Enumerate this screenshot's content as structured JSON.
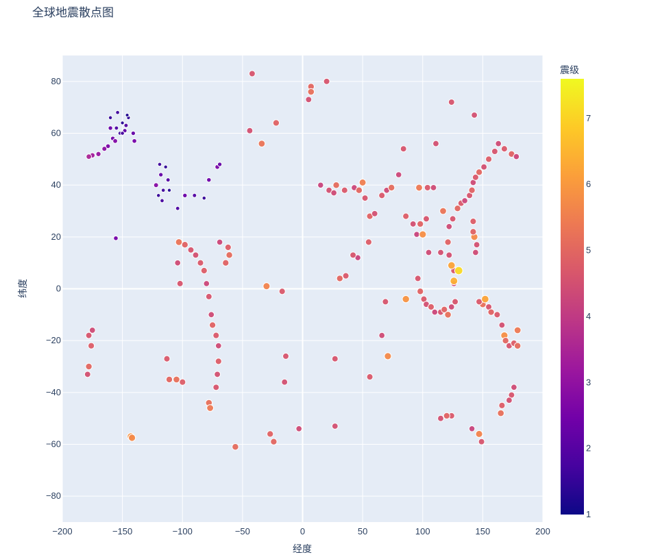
{
  "chart_data": {
    "type": "scatter",
    "title": "全球地震散点图",
    "xlabel": "经度",
    "ylabel": "纬度",
    "xlim": [
      -200,
      200
    ],
    "ylim": [
      -90,
      90
    ],
    "x_ticks": [
      -200,
      -150,
      -100,
      -50,
      0,
      50,
      100,
      150,
      200
    ],
    "y_ticks": [
      -80,
      -60,
      -40,
      -20,
      0,
      20,
      40,
      60,
      80
    ],
    "grid": true,
    "colorbar": {
      "title": "震级",
      "range": [
        1,
        7.6
      ],
      "ticks": [
        1,
        2,
        3,
        4,
        5,
        6,
        7
      ],
      "colorscale": "plasma"
    },
    "points": [
      {
        "x": -160,
        "y": 66,
        "mag": 1.5
      },
      {
        "x": -155,
        "y": 62,
        "mag": 1.8
      },
      {
        "x": -150,
        "y": 64,
        "mag": 1.3
      },
      {
        "x": -148,
        "y": 61,
        "mag": 2.1
      },
      {
        "x": -152,
        "y": 60,
        "mag": 1.6
      },
      {
        "x": -147,
        "y": 63,
        "mag": 1.9
      },
      {
        "x": -145,
        "y": 66,
        "mag": 1.4
      },
      {
        "x": -158,
        "y": 58,
        "mag": 2.4
      },
      {
        "x": -162,
        "y": 55,
        "mag": 2.6
      },
      {
        "x": -165,
        "y": 54,
        "mag": 2.9
      },
      {
        "x": -170,
        "y": 52,
        "mag": 3.1
      },
      {
        "x": -175,
        "y": 51.5,
        "mag": 3.3
      },
      {
        "x": -178,
        "y": 51,
        "mag": 3.5
      },
      {
        "x": -156,
        "y": 57,
        "mag": 2.7
      },
      {
        "x": -150,
        "y": 60,
        "mag": 1.7
      },
      {
        "x": -141,
        "y": 60,
        "mag": 2.2
      },
      {
        "x": -146,
        "y": 67,
        "mag": 1.2
      },
      {
        "x": -154,
        "y": 68,
        "mag": 1.6
      },
      {
        "x": -140,
        "y": 57,
        "mag": 2.5
      },
      {
        "x": -160,
        "y": 62,
        "mag": 2.3
      },
      {
        "x": -118,
        "y": 44,
        "mag": 2.2
      },
      {
        "x": -116,
        "y": 38,
        "mag": 1.6
      },
      {
        "x": -120,
        "y": 36,
        "mag": 1.5
      },
      {
        "x": -117,
        "y": 34,
        "mag": 1.7
      },
      {
        "x": -122,
        "y": 40,
        "mag": 2.8
      },
      {
        "x": -112,
        "y": 42,
        "mag": 1.9
      },
      {
        "x": -111,
        "y": 38,
        "mag": 1.3
      },
      {
        "x": -114,
        "y": 47,
        "mag": 1.4
      },
      {
        "x": -119,
        "y": 48,
        "mag": 1.6
      },
      {
        "x": -104,
        "y": 31,
        "mag": 1.8
      },
      {
        "x": -98,
        "y": 36,
        "mag": 2.3
      },
      {
        "x": -90,
        "y": 36,
        "mag": 1.9
      },
      {
        "x": -82,
        "y": 35,
        "mag": 1.5
      },
      {
        "x": -78,
        "y": 42,
        "mag": 2.4
      },
      {
        "x": -71,
        "y": 47,
        "mag": 2.6
      },
      {
        "x": -69,
        "y": 48,
        "mag": 2.2
      },
      {
        "x": -155.5,
        "y": 19.5,
        "mag": 2.5
      },
      {
        "x": -178,
        "y": -18,
        "mag": 4.6
      },
      {
        "x": -176,
        "y": -22,
        "mag": 4.8
      },
      {
        "x": -175,
        "y": -16,
        "mag": 4.4
      },
      {
        "x": -178,
        "y": -30,
        "mag": 5.0
      },
      {
        "x": -179,
        "y": -33,
        "mag": 4.5
      },
      {
        "x": -103,
        "y": 18,
        "mag": 5.3
      },
      {
        "x": -98,
        "y": 17,
        "mag": 4.9
      },
      {
        "x": -93,
        "y": 15,
        "mag": 4.6
      },
      {
        "x": -89,
        "y": 13,
        "mag": 4.5
      },
      {
        "x": -85,
        "y": 10,
        "mag": 4.7
      },
      {
        "x": -82,
        "y": 7,
        "mag": 4.8
      },
      {
        "x": -80,
        "y": 2,
        "mag": 4.3
      },
      {
        "x": -78,
        "y": -3,
        "mag": 4.6
      },
      {
        "x": -76,
        "y": -10,
        "mag": 4.4
      },
      {
        "x": -75,
        "y": -14,
        "mag": 4.9
      },
      {
        "x": -72,
        "y": -18,
        "mag": 4.7
      },
      {
        "x": -70,
        "y": -22,
        "mag": 4.4
      },
      {
        "x": -70,
        "y": -28,
        "mag": 4.8
      },
      {
        "x": -71,
        "y": -33,
        "mag": 4.5
      },
      {
        "x": -72,
        "y": -38,
        "mag": 4.6
      },
      {
        "x": -69,
        "y": 18,
        "mag": 4.3
      },
      {
        "x": -62,
        "y": 16,
        "mag": 4.8
      },
      {
        "x": -61,
        "y": 13,
        "mag": 5.1
      },
      {
        "x": -64,
        "y": 10,
        "mag": 4.9
      },
      {
        "x": -78,
        "y": -44,
        "mag": 5.2
      },
      {
        "x": -77,
        "y": -46,
        "mag": 5.4
      },
      {
        "x": -113,
        "y": -27,
        "mag": 4.7
      },
      {
        "x": -111,
        "y": -35,
        "mag": 5.0
      },
      {
        "x": -105,
        "y": -35,
        "mag": 5.2
      },
      {
        "x": -100,
        "y": -36,
        "mag": 4.8
      },
      {
        "x": -102,
        "y": 2,
        "mag": 4.6
      },
      {
        "x": -104,
        "y": 10,
        "mag": 4.4
      },
      {
        "x": -56,
        "y": -61,
        "mag": 5.1
      },
      {
        "x": -27,
        "y": -56,
        "mag": 4.9
      },
      {
        "x": -24,
        "y": -59,
        "mag": 5.0
      },
      {
        "x": -30,
        "y": 1,
        "mag": 5.6
      },
      {
        "x": -17,
        "y": -1,
        "mag": 4.7
      },
      {
        "x": -14,
        "y": -26,
        "mag": 4.6
      },
      {
        "x": -15,
        "y": -36,
        "mag": 4.5
      },
      {
        "x": -3,
        "y": -54,
        "mag": 4.4
      },
      {
        "x": -34,
        "y": 56,
        "mag": 5.3
      },
      {
        "x": -22,
        "y": 64,
        "mag": 4.9
      },
      {
        "x": -44,
        "y": 61,
        "mag": 4.5
      },
      {
        "x": -42,
        "y": 83,
        "mag": 4.6
      },
      {
        "x": -143,
        "y": -57,
        "mag": 5.9
      },
      {
        "x": -142,
        "y": -57.5,
        "mag": 5.7
      },
      {
        "x": 7,
        "y": 78,
        "mag": 5.0
      },
      {
        "x": 20,
        "y": 80,
        "mag": 4.6
      },
      {
        "x": 5,
        "y": 73,
        "mag": 4.5
      },
      {
        "x": 7,
        "y": 76,
        "mag": 5.2
      },
      {
        "x": 15,
        "y": 40,
        "mag": 4.2
      },
      {
        "x": 22,
        "y": 38,
        "mag": 4.5
      },
      {
        "x": 26,
        "y": 37,
        "mag": 4.4
      },
      {
        "x": 28,
        "y": 40,
        "mag": 5.1
      },
      {
        "x": 35,
        "y": 38,
        "mag": 4.7
      },
      {
        "x": 43,
        "y": 39,
        "mag": 4.3
      },
      {
        "x": 47,
        "y": 38,
        "mag": 5.0
      },
      {
        "x": 50,
        "y": 41,
        "mag": 5.5
      },
      {
        "x": 52,
        "y": 35,
        "mag": 4.6
      },
      {
        "x": 56,
        "y": 28,
        "mag": 4.9
      },
      {
        "x": 60,
        "y": 29,
        "mag": 4.5
      },
      {
        "x": 66,
        "y": 36,
        "mag": 4.7
      },
      {
        "x": 70,
        "y": 38,
        "mag": 4.4
      },
      {
        "x": 74,
        "y": 39,
        "mag": 5.1
      },
      {
        "x": 80,
        "y": 44,
        "mag": 4.3
      },
      {
        "x": 84,
        "y": 54,
        "mag": 4.6
      },
      {
        "x": 86,
        "y": 28,
        "mag": 4.8
      },
      {
        "x": 92,
        "y": 25,
        "mag": 4.5
      },
      {
        "x": 95,
        "y": 21,
        "mag": 4.2
      },
      {
        "x": 98,
        "y": 25,
        "mag": 4.9
      },
      {
        "x": 100,
        "y": 21,
        "mag": 5.8
      },
      {
        "x": 103,
        "y": 27,
        "mag": 4.6
      },
      {
        "x": 97,
        "y": 39,
        "mag": 5.4
      },
      {
        "x": 104,
        "y": 39,
        "mag": 4.7
      },
      {
        "x": 111,
        "y": 56,
        "mag": 4.5
      },
      {
        "x": 105,
        "y": 14,
        "mag": 4.4
      },
      {
        "x": 96,
        "y": 4,
        "mag": 4.6
      },
      {
        "x": 98,
        "y": -1,
        "mag": 4.9
      },
      {
        "x": 101,
        "y": -4,
        "mag": 4.7
      },
      {
        "x": 103,
        "y": -6,
        "mag": 4.5
      },
      {
        "x": 107,
        "y": -7,
        "mag": 4.8
      },
      {
        "x": 110,
        "y": -9,
        "mag": 4.3
      },
      {
        "x": 115,
        "y": -9,
        "mag": 4.6
      },
      {
        "x": 118,
        "y": -8,
        "mag": 4.9
      },
      {
        "x": 121,
        "y": -10,
        "mag": 5.2
      },
      {
        "x": 124,
        "y": -7,
        "mag": 4.4
      },
      {
        "x": 127,
        "y": -5,
        "mag": 4.6
      },
      {
        "x": 126,
        "y": 2,
        "mag": 4.3
      },
      {
        "x": 126,
        "y": 7,
        "mag": 4.7
      },
      {
        "x": 122,
        "y": 13,
        "mag": 4.5
      },
      {
        "x": 121,
        "y": 18,
        "mag": 4.9
      },
      {
        "x": 122,
        "y": 24,
        "mag": 4.4
      },
      {
        "x": 125,
        "y": 27,
        "mag": 4.6
      },
      {
        "x": 129,
        "y": 31,
        "mag": 5.0
      },
      {
        "x": 132,
        "y": 33,
        "mag": 4.7
      },
      {
        "x": 135,
        "y": 34,
        "mag": 4.3
      },
      {
        "x": 139,
        "y": 36,
        "mag": 4.6
      },
      {
        "x": 141,
        "y": 38,
        "mag": 4.9
      },
      {
        "x": 142,
        "y": 41,
        "mag": 4.4
      },
      {
        "x": 144,
        "y": 43,
        "mag": 4.7
      },
      {
        "x": 147,
        "y": 45,
        "mag": 5.0
      },
      {
        "x": 151,
        "y": 47,
        "mag": 4.5
      },
      {
        "x": 155,
        "y": 50,
        "mag": 4.8
      },
      {
        "x": 160,
        "y": 53,
        "mag": 4.6
      },
      {
        "x": 163,
        "y": 56,
        "mag": 4.4
      },
      {
        "x": 168,
        "y": 54,
        "mag": 4.7
      },
      {
        "x": 174,
        "y": 52,
        "mag": 4.9
      },
      {
        "x": 178,
        "y": 51,
        "mag": 4.3
      },
      {
        "x": 143,
        "y": 67,
        "mag": 4.5
      },
      {
        "x": 124,
        "y": 72,
        "mag": 4.6
      },
      {
        "x": 142,
        "y": 26,
        "mag": 4.8
      },
      {
        "x": 143,
        "y": 20,
        "mag": 5.7
      },
      {
        "x": 145,
        "y": 17,
        "mag": 4.5
      },
      {
        "x": 144,
        "y": 14,
        "mag": 4.4
      },
      {
        "x": 142,
        "y": 22,
        "mag": 4.9
      },
      {
        "x": 150,
        "y": -6,
        "mag": 5.2
      },
      {
        "x": 147,
        "y": -5,
        "mag": 4.7
      },
      {
        "x": 152,
        "y": -4,
        "mag": 6.2
      },
      {
        "x": 155,
        "y": -7,
        "mag": 4.6
      },
      {
        "x": 157,
        "y": -9,
        "mag": 4.9
      },
      {
        "x": 162,
        "y": -10,
        "mag": 4.7
      },
      {
        "x": 166,
        "y": -14,
        "mag": 4.5
      },
      {
        "x": 168,
        "y": -18,
        "mag": 5.8
      },
      {
        "x": 169,
        "y": -20,
        "mag": 5.0
      },
      {
        "x": 172,
        "y": -22,
        "mag": 4.6
      },
      {
        "x": 176,
        "y": -21,
        "mag": 4.8
      },
      {
        "x": 179,
        "y": -16,
        "mag": 5.4
      },
      {
        "x": 179,
        "y": -22,
        "mag": 5.1
      },
      {
        "x": 176,
        "y": -38,
        "mag": 4.4
      },
      {
        "x": 174,
        "y": -41,
        "mag": 4.6
      },
      {
        "x": 172,
        "y": -43,
        "mag": 4.5
      },
      {
        "x": 166,
        "y": -45,
        "mag": 4.8
      },
      {
        "x": 165,
        "y": -48,
        "mag": 5.2
      },
      {
        "x": 147,
        "y": -56,
        "mag": 5.6
      },
      {
        "x": 149,
        "y": -59,
        "mag": 4.6
      },
      {
        "x": 141,
        "y": -54,
        "mag": 4.2
      },
      {
        "x": 124,
        "y": -49,
        "mag": 4.7
      },
      {
        "x": 120,
        "y": -49,
        "mag": 4.9
      },
      {
        "x": 115,
        "y": -50,
        "mag": 4.5
      },
      {
        "x": 86,
        "y": -4,
        "mag": 5.9
      },
      {
        "x": 69,
        "y": -5,
        "mag": 4.6
      },
      {
        "x": 71,
        "y": -26,
        "mag": 5.7
      },
      {
        "x": 66,
        "y": -18,
        "mag": 4.4
      },
      {
        "x": 56,
        "y": -34,
        "mag": 4.7
      },
      {
        "x": 46,
        "y": 12,
        "mag": 4.2
      },
      {
        "x": 42,
        "y": 13,
        "mag": 4.6
      },
      {
        "x": 31,
        "y": 4,
        "mag": 5.0
      },
      {
        "x": 36,
        "y": 5,
        "mag": 4.7
      },
      {
        "x": 27,
        "y": -27,
        "mag": 4.6
      },
      {
        "x": 27,
        "y": -53,
        "mag": 4.5
      },
      {
        "x": 55,
        "y": 18,
        "mag": 4.8
      },
      {
        "x": 109,
        "y": 39,
        "mag": 4.4
      },
      {
        "x": 115,
        "y": 14,
        "mag": 4.5
      },
      {
        "x": 117,
        "y": 30,
        "mag": 5.3
      },
      {
        "x": 130,
        "y": 7,
        "mag": 7.1
      },
      {
        "x": 126,
        "y": 3,
        "mag": 6.4
      },
      {
        "x": 124,
        "y": 9,
        "mag": 6.2
      }
    ]
  }
}
